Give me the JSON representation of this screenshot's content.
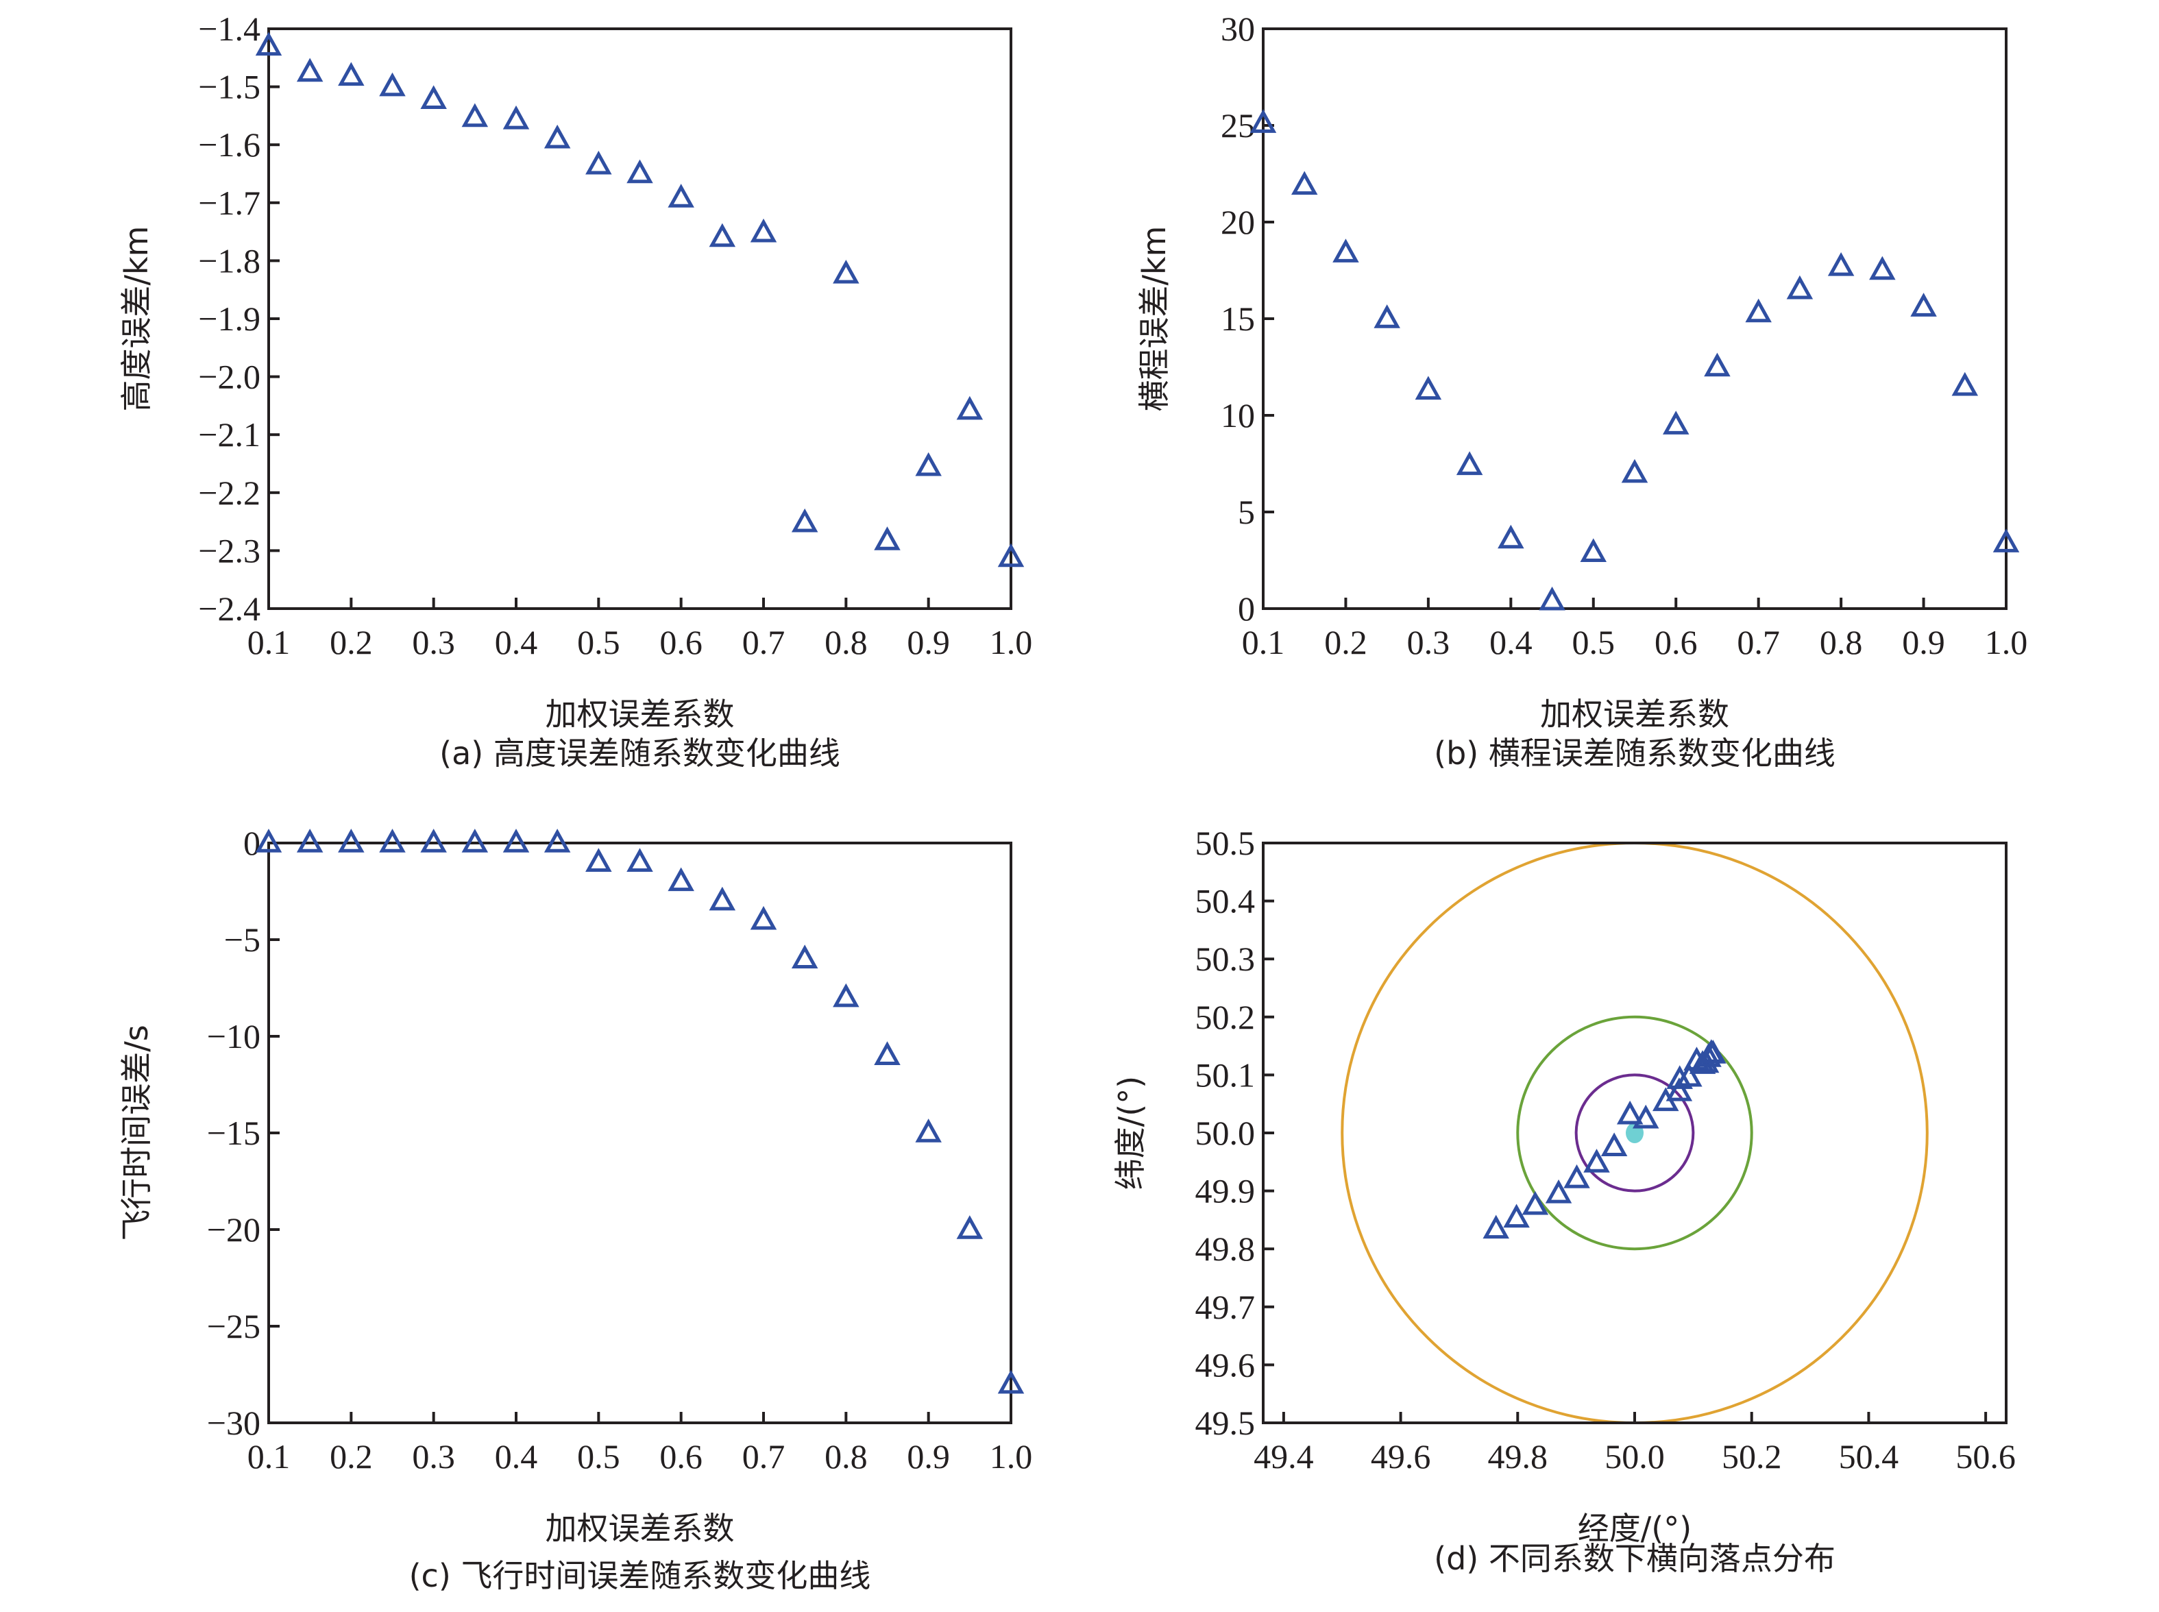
{
  "colors": {
    "marker": "#2f4fa2",
    "axis": "#231f20",
    "circle_inner": "#6b2c8f",
    "circle_middle": "#6aa33a",
    "circle_outer": "#e0a332",
    "center_point": "#6fd0d3"
  },
  "chart_data": [
    {
      "id": "a",
      "type": "scatter",
      "marker": "triangle-open",
      "caption": "(a) 高度误差随系数变化曲线",
      "xlabel": "加权误差系数",
      "ylabel": "高度误差/km",
      "xlim": [
        0.1,
        1.0
      ],
      "ylim": [
        -2.4,
        -1.4
      ],
      "xticks": [
        0.1,
        0.2,
        0.3,
        0.4,
        0.5,
        0.6,
        0.7,
        0.8,
        0.9,
        1.0
      ],
      "xtick_labels": [
        "0.1",
        "0.2",
        "0.3",
        "0.4",
        "0.5",
        "0.6",
        "0.7",
        "0.8",
        "0.9",
        "1.0"
      ],
      "yticks": [
        -1.4,
        -1.5,
        -1.6,
        -1.7,
        -1.8,
        -1.9,
        -2.0,
        -2.1,
        -2.2,
        -2.3,
        -2.4
      ],
      "ytick_labels": [
        "−1.4",
        "−1.5",
        "−1.6",
        "−1.7",
        "−1.8",
        "−1.9",
        "−2.0",
        "−2.1",
        "−2.2",
        "−2.3",
        "−2.4"
      ],
      "x": [
        0.1,
        0.15,
        0.2,
        0.25,
        0.3,
        0.35,
        0.4,
        0.45,
        0.5,
        0.55,
        0.6,
        0.65,
        0.7,
        0.75,
        0.8,
        0.85,
        0.9,
        0.95,
        1.0
      ],
      "y": [
        -1.43,
        -1.475,
        -1.482,
        -1.5,
        -1.522,
        -1.553,
        -1.557,
        -1.59,
        -1.635,
        -1.65,
        -1.692,
        -1.76,
        -1.752,
        -2.252,
        -1.823,
        -2.283,
        -2.155,
        -2.058,
        -2.312
      ]
    },
    {
      "id": "b",
      "type": "scatter",
      "marker": "triangle-open",
      "caption": "(b) 横程误差随系数变化曲线",
      "xlabel": "加权误差系数",
      "ylabel": "横程误差/km",
      "xlim": [
        0.1,
        1.0
      ],
      "ylim": [
        0,
        30
      ],
      "xticks": [
        0.1,
        0.2,
        0.3,
        0.4,
        0.5,
        0.6,
        0.7,
        0.8,
        0.9,
        1.0
      ],
      "xtick_labels": [
        "0.1",
        "0.2",
        "0.3",
        "0.4",
        "0.5",
        "0.6",
        "0.7",
        "0.8",
        "0.9",
        "1.0"
      ],
      "yticks": [
        0,
        5,
        10,
        15,
        20,
        25,
        30
      ],
      "ytick_labels": [
        "0",
        "5",
        "10",
        "15",
        "20",
        "25",
        "30"
      ],
      "x": [
        0.1,
        0.15,
        0.2,
        0.25,
        0.3,
        0.35,
        0.4,
        0.45,
        0.5,
        0.55,
        0.6,
        0.65,
        0.7,
        0.75,
        0.8,
        0.85,
        0.9,
        0.95,
        1.0
      ],
      "y": [
        25.1,
        21.9,
        18.4,
        15.0,
        11.3,
        7.4,
        3.6,
        0.4,
        2.9,
        7.0,
        9.5,
        12.5,
        15.3,
        16.5,
        17.7,
        17.5,
        15.6,
        11.5,
        3.4
      ]
    },
    {
      "id": "c",
      "type": "scatter",
      "marker": "triangle-open",
      "caption": "(c) 飞行时间误差随系数变化曲线",
      "xlabel": "加权误差系数",
      "ylabel": "飞行时间误差/s",
      "xlim": [
        0.1,
        1.0
      ],
      "ylim": [
        -30,
        0
      ],
      "xticks": [
        0.1,
        0.2,
        0.3,
        0.4,
        0.5,
        0.6,
        0.7,
        0.8,
        0.9,
        1.0
      ],
      "xtick_labels": [
        "0.1",
        "0.2",
        "0.3",
        "0.4",
        "0.5",
        "0.6",
        "0.7",
        "0.8",
        "0.9",
        "1.0"
      ],
      "yticks": [
        0,
        -5,
        -10,
        -15,
        -20,
        -25,
        -30
      ],
      "ytick_labels": [
        "0",
        "−5",
        "−10",
        "−15",
        "−20",
        "−25",
        "−30"
      ],
      "x": [
        0.1,
        0.15,
        0.2,
        0.25,
        0.3,
        0.35,
        0.4,
        0.45,
        0.5,
        0.55,
        0.6,
        0.65,
        0.7,
        0.75,
        0.8,
        0.85,
        0.9,
        0.95,
        1.0
      ],
      "y": [
        0,
        0,
        0,
        0,
        0,
        0,
        0,
        0,
        -1,
        -1,
        -2,
        -3,
        -4,
        -6,
        -8,
        -11,
        -15,
        -20,
        -28
      ]
    },
    {
      "id": "d",
      "type": "scatter",
      "marker": "triangle-open",
      "caption": "(d) 不同系数下横向落点分布",
      "xlabel": "经度/(°)",
      "ylabel": "纬度/(°)",
      "xlim": [
        49.365,
        50.635
      ],
      "ylim": [
        49.5,
        50.5
      ],
      "xticks": [
        49.4,
        49.6,
        49.8,
        50.0,
        50.2,
        50.4,
        50.6
      ],
      "xtick_labels": [
        "49.4",
        "49.6",
        "49.8",
        "50.0",
        "50.2",
        "50.4",
        "50.6"
      ],
      "yticks": [
        49.5,
        49.6,
        49.7,
        49.8,
        49.9,
        50.0,
        50.1,
        50.2,
        50.3,
        50.4,
        50.5
      ],
      "ytick_labels": [
        "49.5",
        "49.6",
        "49.7",
        "49.8",
        "49.9",
        "50.0",
        "50.1",
        "50.2",
        "50.3",
        "50.4",
        "50.5"
      ],
      "target": [
        50.0,
        50.0
      ],
      "circles": [
        {
          "name": "inner",
          "radius_deg": 0.1
        },
        {
          "name": "middle",
          "radius_deg": 0.2
        },
        {
          "name": "outer",
          "radius_deg": 0.5
        }
      ],
      "x": [
        49.763,
        49.798,
        49.83,
        49.87,
        49.901,
        49.935,
        49.965,
        49.992,
        50.019,
        50.053,
        50.076,
        50.077,
        50.093,
        50.106,
        50.116,
        50.122,
        50.126,
        50.131,
        50.134
      ],
      "y": [
        49.834,
        49.853,
        49.875,
        49.895,
        49.921,
        49.948,
        49.976,
        50.031,
        50.024,
        50.054,
        50.071,
        50.092,
        50.096,
        50.124,
        50.118,
        50.12,
        50.13,
        50.137,
        50.136
      ]
    }
  ]
}
